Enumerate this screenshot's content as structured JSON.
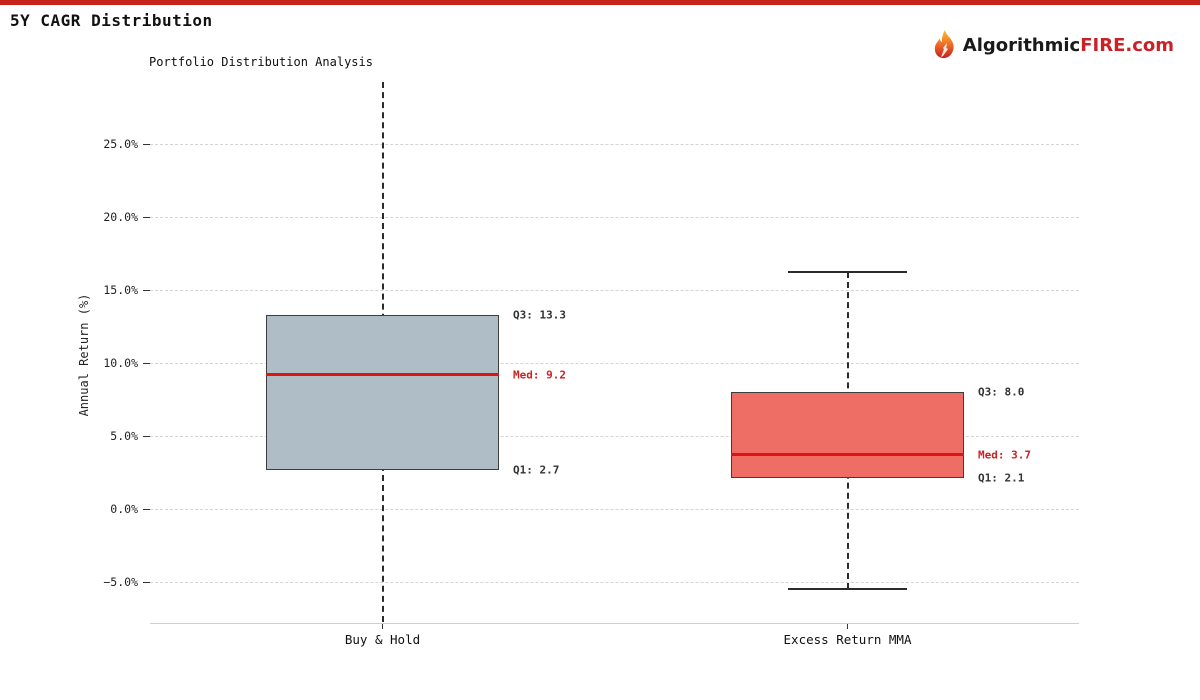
{
  "page": {
    "title": "5Y CAGR Distribution",
    "accent_color": "#c8231a",
    "brand": {
      "name_dark": "Algorithmic",
      "name_red": "FIRE.com",
      "dark_color": "#1a1a1a",
      "red_color": "#cc2027"
    }
  },
  "chart_data": {
    "type": "boxplot",
    "title": "Portfolio Distribution Analysis",
    "ylabel": "Annual Return (%)",
    "xlabel": "",
    "ylim": [
      -7.8,
      29.3
    ],
    "grid": "horizontal-dashed",
    "y_ticks": [
      {
        "value": 25,
        "label": "25.0%"
      },
      {
        "value": 20,
        "label": "20.0%"
      },
      {
        "value": 15,
        "label": "15.0%"
      },
      {
        "value": 10,
        "label": "10.0%"
      },
      {
        "value": 5,
        "label": "5.0%"
      },
      {
        "value": 0,
        "label": "0.0%"
      },
      {
        "value": -5,
        "label": "−5.0%"
      }
    ],
    "categories": [
      "Buy & Hold",
      "Excess Return MMA"
    ],
    "median_color": "#dd1510",
    "series": [
      {
        "label": "Buy & Hold",
        "q1": 2.7,
        "median": 9.2,
        "q3": 13.3,
        "whisker_low": -7.77,
        "whisker_high": 29.25,
        "caps": false,
        "fill": "#aebdc6",
        "annotations": [
          {
            "text": "Q3: 13.3",
            "value": 13.3,
            "color": "#333333"
          },
          {
            "text": "Med: 9.2",
            "value": 9.2,
            "color": "#cc2222"
          },
          {
            "text": "Q1: 2.7",
            "value": 2.7,
            "color": "#333333"
          }
        ]
      },
      {
        "label": "Excess Return MMA",
        "q1": 2.1,
        "median": 3.7,
        "q3": 8.0,
        "whisker_low": -5.5,
        "whisker_high": 16.2,
        "caps": true,
        "fill": "#ee6e66",
        "annotations": [
          {
            "text": "Q3: 8.0",
            "value": 8.0,
            "color": "#333333"
          },
          {
            "text": "Med: 3.7",
            "value": 3.7,
            "color": "#cc2222"
          },
          {
            "text": "Q1: 2.1",
            "value": 2.1,
            "color": "#333333"
          }
        ]
      }
    ]
  }
}
